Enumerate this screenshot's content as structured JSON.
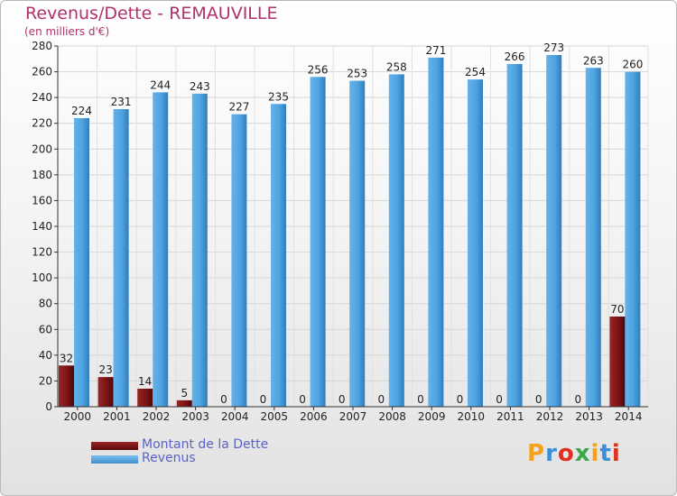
{
  "title": "Revenus/Dette - REMAUVILLE",
  "subtitle": "(en milliers d'€)",
  "logo_text": "Proxiti",
  "colors": {
    "title": "#b0316b",
    "debt": "#7a1515",
    "revenue": "#4fa3e0",
    "axis_text": "#222222",
    "legend_text": "#5a63c9"
  },
  "chart_data": {
    "type": "bar",
    "categories": [
      "2000",
      "2001",
      "2002",
      "2003",
      "2004",
      "2005",
      "2006",
      "2007",
      "2008",
      "2009",
      "2010",
      "2011",
      "2012",
      "2013",
      "2014"
    ],
    "series": [
      {
        "name": "Montant de la Dette",
        "values": [
          32,
          23,
          14,
          5,
          0,
          0,
          0,
          0,
          0,
          0,
          0,
          0,
          0,
          0,
          70
        ]
      },
      {
        "name": "Revenus",
        "values": [
          224,
          231,
          244,
          243,
          227,
          235,
          256,
          253,
          258,
          271,
          254,
          266,
          273,
          263,
          260
        ]
      }
    ],
    "ylim": [
      0,
      280
    ],
    "yticks": [
      0,
      20,
      40,
      60,
      80,
      100,
      120,
      140,
      160,
      180,
      200,
      220,
      240,
      260,
      280
    ],
    "grid": true,
    "legend": "bottom-left"
  }
}
